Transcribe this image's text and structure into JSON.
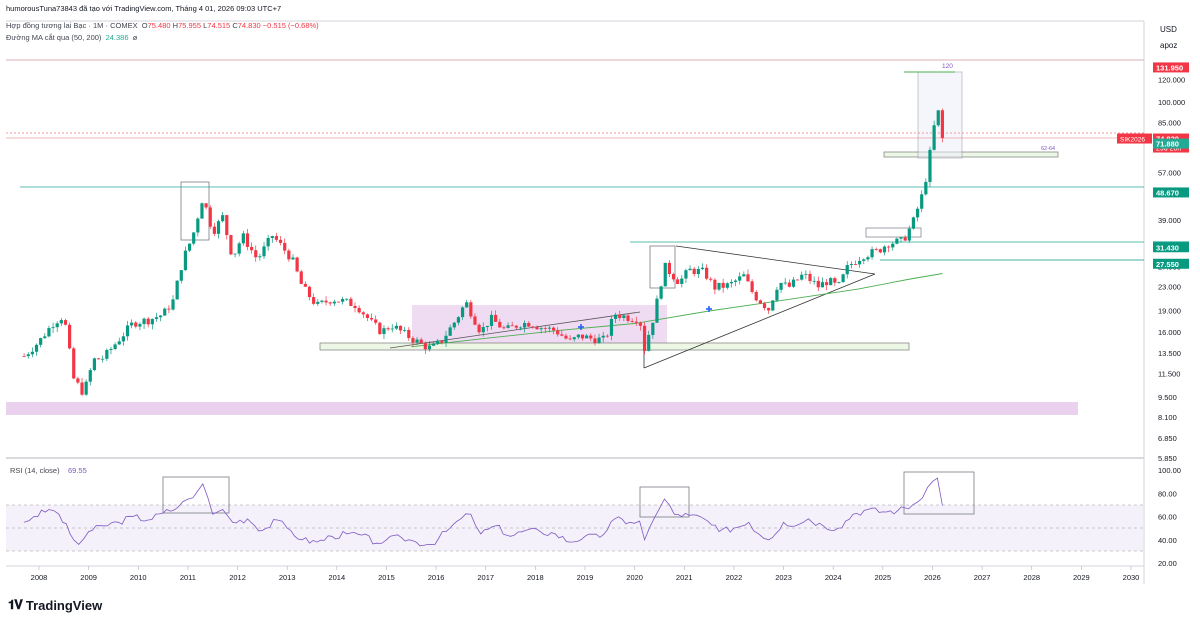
{
  "header": {
    "published": "humorousTuna73843 đã tạo với TradingView.com, Tháng 4 01, 2026 09:03 UTC+7",
    "symbol_line": "Hợp đồng tương lai Bạc · 1M · COMEX",
    "ohlc": {
      "o_label": "O",
      "o": "75.480",
      "h_label": "H",
      "h": "75.955",
      "l_label": "L",
      "l": "74.515",
      "c_label": "C",
      "c": "74.830",
      "change": "−0.515 (−0.68%)"
    },
    "ma_label": "Đường MA cắt qua (50, 200)",
    "ma_value": "24.386",
    "ma_extra": "ø"
  },
  "price_axis": {
    "currency": "USD",
    "scale_mode": "apoz",
    "ticks": [
      "120.000",
      "100.000",
      "85.000",
      "70.000",
      "57.000",
      "48.000",
      "39.000",
      "32.000",
      "27.000",
      "23.000",
      "19.000",
      "16.000",
      "13.500",
      "11.500",
      "9.500",
      "8.100",
      "6.850",
      "5.850"
    ]
  },
  "price_tags": [
    {
      "label": "131.950",
      "value": 131.95,
      "color": "#f23645"
    },
    {
      "label": "74.830",
      "value": 74.83,
      "color": "#f23645",
      "ticker": "SIK2026",
      "countdown": "29d 20h"
    },
    {
      "label": "71.880",
      "value": 71.88,
      "color": "#22ab94"
    },
    {
      "label": "48.670",
      "value": 48.67,
      "color": "#089981"
    },
    {
      "label": "31.650",
      "value": 31.65,
      "color": "#22ab94"
    },
    {
      "label": "31.430",
      "value": 31.43,
      "color": "#089981"
    },
    {
      "label": "27.550",
      "value": 27.55,
      "color": "#089981"
    }
  ],
  "time_axis": [
    "2008",
    "2009",
    "2010",
    "2011",
    "2012",
    "2013",
    "2014",
    "2015",
    "2016",
    "2017",
    "2018",
    "2019",
    "2020",
    "2021",
    "2022",
    "2023",
    "2024",
    "2025",
    "2026",
    "2027",
    "2028",
    "2029",
    "2030"
  ],
  "annotations": {
    "top_label": "120",
    "band_label": "62-64"
  },
  "rsi": {
    "label": "RSI (14, close)",
    "value": "69.55",
    "ticks": [
      "100.00",
      "80.00",
      "60.00",
      "40.00",
      "20.00"
    ],
    "overbought": 70,
    "oversold": 30
  },
  "colors": {
    "up": "#089981",
    "down": "#f23645",
    "rsi_line": "#7e57c2",
    "ma_line": "#4caf50",
    "zone": "#e1bee7"
  },
  "footer": {
    "logo_text": "TradingView"
  },
  "chart_data": {
    "type": "candlestick",
    "title": "Hợp đồng tương lai Bạc · 1M · COMEX",
    "scale": "log",
    "ylim": [
      5.85,
      140
    ],
    "xlim": [
      2007.6,
      2030.2
    ],
    "series": [
      {
        "name": "Silver futures monthly (approx. monthly close)",
        "points": [
          [
            2007.7,
            13.2
          ],
          [
            2008.0,
            14.8
          ],
          [
            2008.3,
            17.3
          ],
          [
            2008.5,
            18.2
          ],
          [
            2008.7,
            11.0
          ],
          [
            2008.9,
            9.8
          ],
          [
            2009.1,
            12.8
          ],
          [
            2009.3,
            13.0
          ],
          [
            2009.6,
            15.0
          ],
          [
            2009.9,
            17.2
          ],
          [
            2010.2,
            17.6
          ],
          [
            2010.5,
            18.4
          ],
          [
            2010.7,
            20.5
          ],
          [
            2010.9,
            28.5
          ],
          [
            2011.1,
            34.5
          ],
          [
            2011.3,
            47.0
          ],
          [
            2011.5,
            35.5
          ],
          [
            2011.7,
            40.0
          ],
          [
            2011.9,
            29.0
          ],
          [
            2012.1,
            34.5
          ],
          [
            2012.4,
            28.5
          ],
          [
            2012.7,
            34.5
          ],
          [
            2012.9,
            31.5
          ],
          [
            2013.1,
            28.5
          ],
          [
            2013.3,
            23.0
          ],
          [
            2013.6,
            19.7
          ],
          [
            2013.9,
            20.8
          ],
          [
            2014.1,
            20.5
          ],
          [
            2014.4,
            19.8
          ],
          [
            2014.7,
            17.2
          ],
          [
            2014.9,
            16.0
          ],
          [
            2015.1,
            16.9
          ],
          [
            2015.4,
            15.6
          ],
          [
            2015.7,
            14.5
          ],
          [
            2015.9,
            14.0
          ],
          [
            2016.1,
            14.8
          ],
          [
            2016.4,
            17.6
          ],
          [
            2016.6,
            20.3
          ],
          [
            2016.9,
            16.0
          ],
          [
            2017.1,
            17.8
          ],
          [
            2017.4,
            16.2
          ],
          [
            2017.7,
            17.1
          ],
          [
            2017.9,
            17.2
          ],
          [
            2018.1,
            16.6
          ],
          [
            2018.4,
            16.2
          ],
          [
            2018.7,
            14.8
          ],
          [
            2018.9,
            15.5
          ],
          [
            2019.1,
            15.2
          ],
          [
            2019.4,
            15.0
          ],
          [
            2019.6,
            18.5
          ],
          [
            2019.9,
            17.9
          ],
          [
            2020.1,
            17.8
          ],
          [
            2020.2,
            14.0
          ],
          [
            2020.4,
            18.5
          ],
          [
            2020.6,
            27.0
          ],
          [
            2020.9,
            23.8
          ],
          [
            2021.1,
            26.2
          ],
          [
            2021.4,
            25.8
          ],
          [
            2021.6,
            22.8
          ],
          [
            2021.9,
            23.2
          ],
          [
            2022.2,
            25.0
          ],
          [
            2022.4,
            21.5
          ],
          [
            2022.7,
            19.2
          ],
          [
            2022.9,
            23.9
          ],
          [
            2023.1,
            22.8
          ],
          [
            2023.4,
            25.3
          ],
          [
            2023.7,
            23.0
          ],
          [
            2023.9,
            24.1
          ],
          [
            2024.1,
            22.8
          ],
          [
            2024.3,
            27.0
          ],
          [
            2024.6,
            29.5
          ],
          [
            2024.9,
            30.5
          ],
          [
            2025.1,
            32.5
          ],
          [
            2025.4,
            33.0
          ],
          [
            2025.6,
            38.0
          ],
          [
            2025.8,
            48.0
          ],
          [
            2025.9,
            58.0
          ],
          [
            2026.0,
            76.0
          ],
          [
            2026.1,
            96.0
          ],
          [
            2026.2,
            74.8
          ]
        ]
      },
      {
        "name": "MA 200",
        "points": [
          [
            2015.5,
            14.2
          ],
          [
            2017.0,
            15.2
          ],
          [
            2018.5,
            16.2
          ],
          [
            2020.0,
            17.1
          ],
          [
            2021.5,
            18.9
          ],
          [
            2023.0,
            20.6
          ],
          [
            2024.5,
            22.5
          ],
          [
            2025.5,
            24.3
          ],
          [
            2026.2,
            25.5
          ]
        ]
      }
    ],
    "rsi_series": [
      [
        2007.7,
        55
      ],
      [
        2007.9,
        60
      ],
      [
        2008.2,
        66
      ],
      [
        2008.4,
        62
      ],
      [
        2008.7,
        40
      ],
      [
        2008.8,
        36
      ],
      [
        2009.0,
        47
      ],
      [
        2009.3,
        52
      ],
      [
        2009.6,
        55
      ],
      [
        2009.9,
        60
      ],
      [
        2010.2,
        57
      ],
      [
        2010.5,
        63
      ],
      [
        2010.8,
        68
      ],
      [
        2011.0,
        75
      ],
      [
        2011.2,
        82
      ],
      [
        2011.3,
        88
      ],
      [
        2011.5,
        62
      ],
      [
        2011.7,
        66
      ],
      [
        2011.9,
        55
      ],
      [
        2012.2,
        58
      ],
      [
        2012.5,
        48
      ],
      [
        2012.8,
        57
      ],
      [
        2013.0,
        50
      ],
      [
        2013.3,
        40
      ],
      [
        2013.6,
        38
      ],
      [
        2013.9,
        43
      ],
      [
        2014.2,
        45
      ],
      [
        2014.5,
        44
      ],
      [
        2014.8,
        37
      ],
      [
        2015.0,
        40
      ],
      [
        2015.3,
        42
      ],
      [
        2015.6,
        38
      ],
      [
        2015.9,
        36
      ],
      [
        2016.2,
        47
      ],
      [
        2016.5,
        58
      ],
      [
        2016.7,
        62
      ],
      [
        2016.9,
        45
      ],
      [
        2017.2,
        52
      ],
      [
        2017.5,
        43
      ],
      [
        2017.8,
        48
      ],
      [
        2018.1,
        47
      ],
      [
        2018.4,
        45
      ],
      [
        2018.7,
        38
      ],
      [
        2019.0,
        43
      ],
      [
        2019.3,
        42
      ],
      [
        2019.6,
        58
      ],
      [
        2019.9,
        55
      ],
      [
        2020.1,
        56
      ],
      [
        2020.2,
        40
      ],
      [
        2020.4,
        59
      ],
      [
        2020.6,
        75
      ],
      [
        2020.8,
        62
      ],
      [
        2021.1,
        61
      ],
      [
        2021.4,
        58
      ],
      [
        2021.7,
        47
      ],
      [
        2022.0,
        50
      ],
      [
        2022.3,
        55
      ],
      [
        2022.5,
        45
      ],
      [
        2022.7,
        40
      ],
      [
        2023.0,
        55
      ],
      [
        2023.3,
        53
      ],
      [
        2023.5,
        58
      ],
      [
        2023.8,
        52
      ],
      [
        2024.1,
        50
      ],
      [
        2024.4,
        62
      ],
      [
        2024.7,
        66
      ],
      [
        2025.0,
        64
      ],
      [
        2025.3,
        65
      ],
      [
        2025.6,
        70
      ],
      [
        2025.8,
        76
      ],
      [
        2025.9,
        85
      ],
      [
        2026.0,
        90
      ],
      [
        2026.1,
        93
      ],
      [
        2026.2,
        69.55
      ]
    ]
  }
}
